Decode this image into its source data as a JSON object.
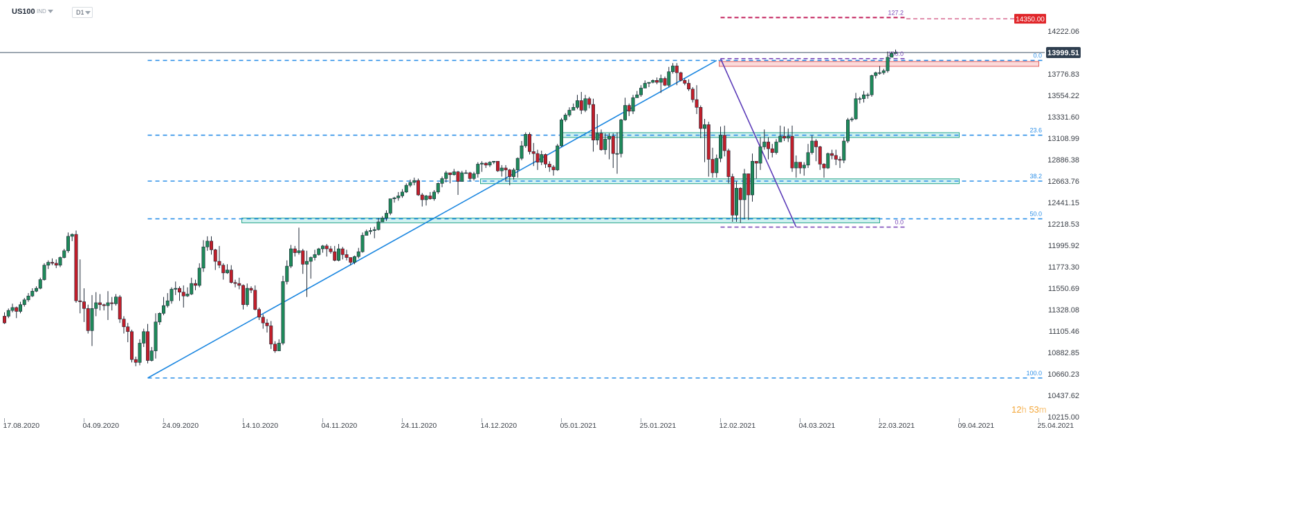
{
  "toolbar": {
    "symbol": "US100",
    "instrument_type": "IND",
    "timeframe": "D1"
  },
  "timer": {
    "hours": "12",
    "h_label": "h",
    "minutes": "53",
    "m_label": "m"
  },
  "colors": {
    "bull": "#1e8a5a",
    "bear": "#c21e2a",
    "level": "#2b8fe8",
    "fib_purple": "#7b4ab8",
    "target": "#c21e5a",
    "zone_fill": "#c9efef",
    "zone_border": "#27a58a",
    "resist_fill": "#fad4d4",
    "resist_border": "#e06060"
  },
  "chart_data": {
    "type": "candlestick",
    "symbol": "US100",
    "timeframe": "D1",
    "y_ticks": [
      "14222.06",
      "13999.51",
      "13776.83",
      "13554.22",
      "13331.60",
      "13108.99",
      "12886.38",
      "12663.76",
      "12441.15",
      "12218.53",
      "11995.92",
      "11773.30",
      "11550.69",
      "11328.08",
      "11105.46",
      "10882.85",
      "10660.23",
      "10437.62",
      "10215.00"
    ],
    "ylim": [
      10215.0,
      14222.06
    ],
    "x_ticks": [
      "17.08.2020",
      "04.09.2020",
      "24.09.2020",
      "14.10.2020",
      "04.11.2020",
      "24.11.2020",
      "14.12.2020",
      "05.01.2021",
      "25.01.2021",
      "12.02.2021",
      "04.03.2021",
      "22.03.2021",
      "09.04.2021",
      "25.04.2021"
    ],
    "current_price": "13999.51",
    "target_price": "14350.00",
    "fib_left": [
      {
        "label": "0.0",
        "value": 13917
      },
      {
        "label": "23.6",
        "value": 13141
      },
      {
        "label": "38.2",
        "value": 12663.76
      },
      {
        "label": "50.0",
        "value": 12272
      },
      {
        "label": "100.0",
        "value": 10618
      }
    ],
    "fib_right": [
      {
        "label": "127.2",
        "value": 14363
      },
      {
        "label": "100.0",
        "value": 13936
      },
      {
        "label": "0.0",
        "value": 12186
      }
    ],
    "zones": [
      {
        "kind": "support",
        "low": 12230,
        "high": 12280,
        "from": "14.10.2020",
        "to": "22.03.2021"
      },
      {
        "kind": "support",
        "low": 12637,
        "high": 12687,
        "from": "14.12.2020",
        "to": "09.04.2021"
      },
      {
        "kind": "support",
        "low": 13117,
        "high": 13167,
        "from": "05.01.2021",
        "to": "09.04.2021"
      },
      {
        "kind": "resistance",
        "low": 13856,
        "high": 13906,
        "from": "12.02.2021",
        "to": "25.04.2021"
      }
    ],
    "candles": [
      [
        11260,
        11190,
        11300,
        11180
      ],
      [
        11260,
        11320,
        11340,
        11240
      ],
      [
        11320,
        11350,
        11390,
        11300
      ],
      [
        11350,
        11310,
        11360,
        11240
      ],
      [
        11310,
        11380,
        11410,
        11290
      ],
      [
        11380,
        11430,
        11450,
        11360
      ],
      [
        11430,
        11470,
        11500,
        11410
      ],
      [
        11470,
        11520,
        11550,
        11460
      ],
      [
        11520,
        11550,
        11570,
        11510
      ],
      [
        11550,
        11640,
        11660,
        11540
      ],
      [
        11640,
        11790,
        11810,
        11630
      ],
      [
        11790,
        11820,
        11840,
        11750
      ],
      [
        11820,
        11810,
        11860,
        11790
      ],
      [
        11810,
        11790,
        11850,
        11760
      ],
      [
        11790,
        11870,
        11880,
        11770
      ],
      [
        11870,
        11940,
        11960,
        11860
      ],
      [
        11940,
        12090,
        12130,
        11920
      ],
      [
        12090,
        12110,
        12120,
        12040
      ],
      [
        12110,
        11420,
        12150,
        11400
      ],
      [
        11420,
        11410,
        11850,
        11290
      ],
      [
        11410,
        11340,
        11550,
        11200
      ],
      [
        11340,
        11110,
        11380,
        11080
      ],
      [
        11110,
        11340,
        11480,
        10950
      ],
      [
        11340,
        11400,
        11510,
        11260
      ],
      [
        11400,
        11380,
        11490,
        11320
      ],
      [
        11380,
        11370,
        11390,
        11320
      ],
      [
        11370,
        11400,
        11520,
        11220
      ],
      [
        11400,
        11390,
        11460,
        11320
      ],
      [
        11390,
        11460,
        11490,
        11370
      ],
      [
        11460,
        11230,
        11480,
        11190
      ],
      [
        11230,
        11150,
        11260,
        11080
      ],
      [
        11150,
        11100,
        11190,
        10990
      ],
      [
        11100,
        10810,
        11120,
        10780
      ],
      [
        10810,
        10780,
        10840,
        10740
      ],
      [
        10780,
        10980,
        11020,
        10750
      ],
      [
        10980,
        11100,
        11130,
        10940
      ],
      [
        11100,
        10800,
        11180,
        10770
      ],
      [
        10800,
        10900,
        10940,
        10790
      ],
      [
        10900,
        11200,
        11290,
        10820
      ],
      [
        11200,
        11290,
        11300,
        11170
      ],
      [
        11290,
        11370,
        11460,
        11270
      ],
      [
        11370,
        11420,
        11500,
        11350
      ],
      [
        11420,
        11540,
        11560,
        11390
      ],
      [
        11540,
        11550,
        11620,
        11480
      ],
      [
        11550,
        11510,
        11570,
        11420
      ],
      [
        11510,
        11470,
        11580,
        11350
      ],
      [
        11470,
        11490,
        11560,
        11460
      ],
      [
        11490,
        11600,
        11660,
        11480
      ],
      [
        11600,
        11580,
        11640,
        11530
      ],
      [
        11580,
        11760,
        11810,
        11560
      ],
      [
        11760,
        11980,
        12050,
        11720
      ],
      [
        11980,
        12040,
        12090,
        11940
      ],
      [
        12040,
        11950,
        12090,
        11900
      ],
      [
        11950,
        11830,
        11960,
        11740
      ],
      [
        11830,
        11790,
        11990,
        11760
      ],
      [
        11790,
        11710,
        11810,
        11640
      ],
      [
        11710,
        11740,
        11800,
        11700
      ],
      [
        11740,
        11610,
        11790,
        11600
      ],
      [
        11610,
        11600,
        11640,
        11560
      ],
      [
        11600,
        11580,
        11660,
        11540
      ],
      [
        11580,
        11380,
        11590,
        11330
      ],
      [
        11380,
        11550,
        11600,
        11360
      ],
      [
        11550,
        11530,
        11570,
        11500
      ],
      [
        11530,
        11330,
        11580,
        11320
      ],
      [
        11330,
        11250,
        11350,
        11220
      ],
      [
        11250,
        11190,
        11280,
        11130
      ],
      [
        11190,
        11160,
        11230,
        11090
      ],
      [
        11160,
        10970,
        11210,
        10920
      ],
      [
        10970,
        10900,
        11000,
        10880
      ],
      [
        10900,
        10980,
        11020,
        10900
      ],
      [
        10980,
        11620,
        11680,
        10960
      ],
      [
        11620,
        11780,
        11840,
        11590
      ],
      [
        11780,
        11960,
        12000,
        11760
      ],
      [
        11960,
        11920,
        11990,
        11880
      ],
      [
        11920,
        11940,
        12180,
        11900
      ],
      [
        11940,
        11800,
        11960,
        11700
      ],
      [
        11800,
        11830,
        11940,
        11460
      ],
      [
        11830,
        11870,
        11880,
        11650
      ],
      [
        11870,
        11900,
        11950,
        11840
      ],
      [
        11900,
        11960,
        11970,
        11890
      ],
      [
        11960,
        11990,
        12000,
        11920
      ],
      [
        11990,
        11960,
        12010,
        11880
      ],
      [
        11960,
        11930,
        11990,
        11910
      ],
      [
        11930,
        11840,
        11990,
        11830
      ],
      [
        11840,
        11960,
        12010,
        11830
      ],
      [
        11960,
        11900,
        11980,
        11850
      ],
      [
        11900,
        11870,
        11950,
        11840
      ],
      [
        11870,
        11820,
        11870,
        11790
      ],
      [
        11820,
        11880,
        11890,
        11800
      ],
      [
        11880,
        11930,
        11970,
        11860
      ],
      [
        11930,
        12100,
        12130,
        11920
      ],
      [
        12100,
        12140,
        12160,
        12100
      ],
      [
        12140,
        12150,
        12180,
        12110
      ],
      [
        12150,
        12160,
        12190,
        12070
      ],
      [
        12160,
        12240,
        12280,
        12150
      ],
      [
        12240,
        12280,
        12300,
        12240
      ],
      [
        12280,
        12330,
        12360,
        12250
      ],
      [
        12330,
        12480,
        12480,
        12310
      ],
      [
        12480,
        12490,
        12500,
        12440
      ],
      [
        12490,
        12510,
        12550,
        12460
      ],
      [
        12510,
        12550,
        12580,
        12490
      ],
      [
        12550,
        12620,
        12640,
        12540
      ],
      [
        12620,
        12650,
        12680,
        12600
      ],
      [
        12650,
        12670,
        12700,
        12620
      ],
      [
        12670,
        12520,
        12690,
        12510
      ],
      [
        12520,
        12470,
        12540,
        12400
      ],
      [
        12470,
        12510,
        12520,
        12410
      ],
      [
        12510,
        12480,
        12550,
        12470
      ],
      [
        12480,
        12550,
        12570,
        12460
      ],
      [
        12550,
        12640,
        12650,
        12530
      ],
      [
        12640,
        12690,
        12710,
        12600
      ],
      [
        12690,
        12750,
        12770,
        12650
      ],
      [
        12750,
        12730,
        12750,
        12640
      ],
      [
        12730,
        12760,
        12790,
        12720
      ],
      [
        12760,
        12660,
        12770,
        12520
      ],
      [
        12660,
        12750,
        12770,
        12660
      ],
      [
        12750,
        12750,
        12780,
        12740
      ],
      [
        12750,
        12690,
        12760,
        12660
      ],
      [
        12690,
        12740,
        12760,
        12670
      ],
      [
        12740,
        12840,
        12860,
        12700
      ],
      [
        12840,
        12850,
        12870,
        12760
      ],
      [
        12850,
        12830,
        12860,
        12800
      ],
      [
        12830,
        12860,
        12870,
        12810
      ],
      [
        12860,
        12870,
        12870,
        12840
      ],
      [
        12870,
        12770,
        12870,
        12760
      ],
      [
        12770,
        12800,
        12830,
        12710
      ],
      [
        12800,
        12780,
        12830,
        12660
      ],
      [
        12780,
        12710,
        12790,
        12620
      ],
      [
        12710,
        12780,
        12800,
        12680
      ],
      [
        12780,
        12900,
        12910,
        12700
      ],
      [
        12900,
        13030,
        13080,
        12880
      ],
      [
        13030,
        13150,
        13170,
        13010
      ],
      [
        13150,
        12970,
        13170,
        12940
      ],
      [
        12970,
        12950,
        13060,
        12820
      ],
      [
        12950,
        12860,
        12990,
        12780
      ],
      [
        12860,
        12940,
        12980,
        12830
      ],
      [
        12940,
        12840,
        12950,
        12800
      ],
      [
        12840,
        12810,
        12870,
        12760
      ],
      [
        12810,
        12780,
        12830,
        12720
      ],
      [
        12780,
        13030,
        13050,
        12770
      ],
      [
        13030,
        13300,
        13320,
        13020
      ],
      [
        13300,
        13350,
        13370,
        13280
      ],
      [
        13350,
        13400,
        13430,
        13330
      ],
      [
        13400,
        13430,
        13470,
        13400
      ],
      [
        13430,
        13500,
        13560,
        13410
      ],
      [
        13500,
        13400,
        13590,
        13360
      ],
      [
        13400,
        13520,
        13560,
        13380
      ],
      [
        13520,
        13460,
        13540,
        13420
      ],
      [
        13460,
        13090,
        13520,
        12970
      ],
      [
        13090,
        13160,
        13360,
        13040
      ],
      [
        13160,
        12990,
        13200,
        12980
      ],
      [
        12990,
        13100,
        13160,
        12940
      ],
      [
        13100,
        13130,
        13160,
        12890
      ],
      [
        13130,
        12950,
        13160,
        12800
      ],
      [
        12950,
        12950,
        13170,
        12740
      ],
      [
        12950,
        13300,
        13310,
        12910
      ],
      [
        13300,
        13450,
        13530,
        13290
      ],
      [
        13450,
        13390,
        13470,
        13340
      ],
      [
        13390,
        13530,
        13560,
        13360
      ],
      [
        13530,
        13560,
        13600,
        13540
      ],
      [
        13560,
        13630,
        13660,
        13540
      ],
      [
        13630,
        13680,
        13710,
        13640
      ],
      [
        13680,
        13690,
        13690,
        13640
      ],
      [
        13690,
        13710,
        13720,
        13680
      ],
      [
        13710,
        13690,
        13740,
        13670
      ],
      [
        13690,
        13730,
        13770,
        13580
      ],
      [
        13730,
        13660,
        13750,
        13650
      ],
      [
        13660,
        13800,
        13850,
        13640
      ],
      [
        13800,
        13860,
        13890,
        13780
      ],
      [
        13860,
        13790,
        13890,
        13660
      ],
      [
        13790,
        13710,
        13800,
        13700
      ],
      [
        13710,
        13680,
        13730,
        13660
      ],
      [
        13680,
        13620,
        13720,
        13600
      ],
      [
        13620,
        13510,
        13640,
        13480
      ],
      [
        13510,
        13430,
        13660,
        13360
      ],
      [
        13430,
        13210,
        13450,
        13110
      ],
      [
        13210,
        13250,
        13310,
        12860
      ],
      [
        13250,
        12890,
        13280,
        12710
      ],
      [
        12890,
        12750,
        13010,
        12700
      ],
      [
        12750,
        12900,
        12940,
        12700
      ],
      [
        12900,
        13140,
        13230,
        12860
      ],
      [
        13140,
        12980,
        13240,
        12920
      ],
      [
        12980,
        12710,
        13000,
        12640
      ],
      [
        12710,
        12310,
        12740,
        12240
      ],
      [
        12310,
        12590,
        12660,
        12240
      ],
      [
        12590,
        12470,
        12600,
        12230
      ],
      [
        12470,
        12740,
        12790,
        12270
      ],
      [
        12740,
        12520,
        12740,
        12260
      ],
      [
        12520,
        12870,
        12950,
        12450
      ],
      [
        12870,
        12850,
        12870,
        12690
      ],
      [
        12850,
        13020,
        13120,
        12780
      ],
      [
        13020,
        13070,
        13200,
        12990
      ],
      [
        13070,
        13000,
        13120,
        12890
      ],
      [
        13000,
        12960,
        13050,
        12910
      ],
      [
        12960,
        13070,
        13100,
        12940
      ],
      [
        13070,
        13130,
        13240,
        13070
      ],
      [
        13130,
        13110,
        13230,
        13080
      ],
      [
        13110,
        13130,
        13210,
        13070
      ],
      [
        13130,
        12800,
        13240,
        12760
      ],
      [
        12800,
        12860,
        12930,
        12700
      ],
      [
        12860,
        12800,
        12860,
        12740
      ],
      [
        12800,
        12830,
        12860,
        12720
      ],
      [
        12830,
        12960,
        13050,
        12800
      ],
      [
        12960,
        13080,
        13140,
        12940
      ],
      [
        13080,
        13020,
        13100,
        12870
      ],
      [
        13020,
        12840,
        13030,
        12780
      ],
      [
        12840,
        12800,
        12850,
        12700
      ],
      [
        12800,
        12950,
        12960,
        12790
      ],
      [
        12950,
        12930,
        12990,
        12890
      ],
      [
        12930,
        12890,
        12990,
        12830
      ],
      [
        12890,
        12880,
        12920,
        12800
      ],
      [
        12880,
        13080,
        13120,
        12850
      ],
      [
        13080,
        13300,
        13320,
        13060
      ],
      [
        13300,
        13310,
        13330,
        13280
      ],
      [
        13310,
        13520,
        13580,
        13300
      ],
      [
        13520,
        13520,
        13540,
        13470
      ],
      [
        13520,
        13560,
        13600,
        13480
      ],
      [
        13560,
        13560,
        13580,
        13520
      ],
      [
        13560,
        13760,
        13770,
        13540
      ],
      [
        13760,
        13790,
        13800,
        13730
      ],
      [
        13790,
        13790,
        13860,
        13770
      ],
      [
        13790,
        13810,
        13830,
        13770
      ],
      [
        13810,
        13950,
        14010,
        13790
      ],
      [
        13950,
        13990,
        14010,
        13950
      ],
      [
        13990,
        14000,
        14030,
        13990
      ]
    ]
  }
}
